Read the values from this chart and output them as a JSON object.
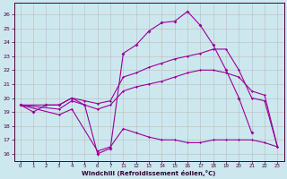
{
  "bg_color": "#cce8ee",
  "line_color": "#990099",
  "grid_color": "#bbbbbb",
  "xlabel": "Windchill (Refroidissement éolien,°C)",
  "ylim": [
    15.5,
    26.8
  ],
  "yticks": [
    16,
    17,
    18,
    19,
    20,
    21,
    22,
    23,
    24,
    25,
    26
  ],
  "xlim": [
    -0.5,
    23.5
  ],
  "hours": [
    0,
    1,
    2,
    3,
    4,
    5,
    6,
    7,
    11,
    12,
    13,
    14,
    15,
    16,
    17,
    18,
    19,
    20,
    21,
    22,
    23
  ],
  "line_spiky": {
    "x": [
      0,
      1,
      2,
      3,
      4,
      5,
      6,
      7,
      11,
      12,
      13,
      14,
      15,
      16,
      17,
      18,
      19,
      20,
      21
    ],
    "y": [
      19.5,
      19.0,
      19.5,
      19.5,
      20.0,
      19.5,
      16.0,
      16.4,
      23.2,
      23.8,
      24.8,
      25.4,
      25.5,
      26.2,
      25.2,
      23.8,
      22.0,
      20.0,
      17.5
    ]
  },
  "line_upper": {
    "x": [
      0,
      3,
      4,
      5,
      6,
      7,
      11,
      12,
      13,
      14,
      15,
      16,
      17,
      18,
      19,
      20,
      21,
      22,
      23
    ],
    "y": [
      19.5,
      19.5,
      20.0,
      19.8,
      19.6,
      19.8,
      21.5,
      21.8,
      22.2,
      22.5,
      22.8,
      23.0,
      23.2,
      23.5,
      23.5,
      22.0,
      20.0,
      19.8,
      16.5
    ]
  },
  "line_lower_mid": {
    "x": [
      0,
      3,
      4,
      5,
      6,
      7,
      11,
      12,
      13,
      14,
      15,
      16,
      17,
      18,
      19,
      20,
      21,
      22,
      23
    ],
    "y": [
      19.5,
      19.2,
      19.8,
      19.5,
      19.2,
      19.5,
      20.5,
      20.8,
      21.0,
      21.2,
      21.5,
      21.8,
      22.0,
      22.0,
      21.8,
      21.5,
      20.5,
      20.2,
      16.5
    ]
  },
  "line_bottom": {
    "x": [
      0,
      3,
      4,
      6,
      7,
      11,
      12,
      13,
      14,
      15,
      16,
      17,
      18,
      19,
      20,
      21,
      22,
      23
    ],
    "y": [
      19.5,
      18.8,
      19.2,
      16.2,
      16.5,
      17.8,
      17.5,
      17.2,
      17.0,
      17.0,
      16.8,
      16.8,
      17.0,
      17.0,
      17.0,
      17.0,
      16.8,
      16.5
    ]
  },
  "xtick_labels": [
    "0",
    "1",
    "2",
    "3",
    "4",
    "5",
    "6",
    "7",
    "",
    "",
    "",
    "11",
    "12",
    "13",
    "14",
    "15",
    "16",
    "17",
    "18",
    "19",
    "20",
    "21",
    "22",
    "23"
  ]
}
